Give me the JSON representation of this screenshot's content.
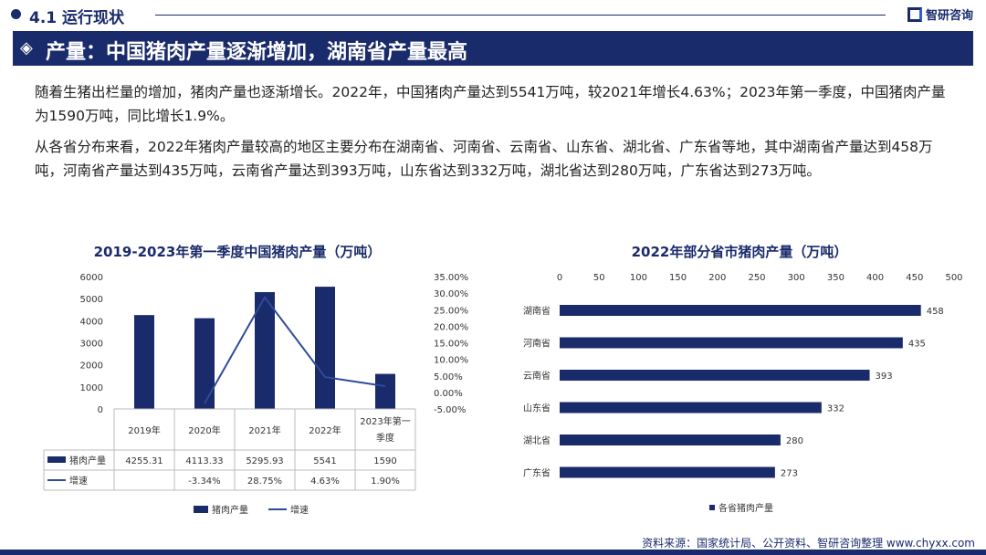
{
  "header": {
    "section": "4.1 运行现状",
    "brand": "智研咨询"
  },
  "banner": {
    "icon": "diamond-arrow-icon",
    "title": "产量：中国猪肉产量逐渐增加，湖南省产量最高"
  },
  "paragraphs": [
    "随着生猪出栏量的增加，猪肉产量也逐渐增长。2022年，中国猪肉产量达到5541万吨，较2021年增长4.63%；2023年第一季度，中国猪肉产量为1590万吨，同比增长1.9%。",
    "从各省分布来看，2022年猪肉产量较高的地区主要分布在湖南省、河南省、云南省、山东省、湖北省、广东省等地，其中湖南省产量达到458万吨，河南省产量达到435万吨，云南省产量达到393万吨，山东省达到332万吨，湖北省达到280万吨，广东省达到273万吨。"
  ],
  "source": "资料来源：国家统计局、公开资料、智研咨询整理 www.chyxx.com",
  "colors": {
    "navy": "#1a2b6b",
    "line": "#2e4a9a"
  },
  "chart_data": [
    {
      "type": "bar",
      "title": "2019-2023年第一季度中国猪肉产量（万吨）",
      "categories": [
        "2019年",
        "2020年",
        "2021年",
        "2022年",
        "2023年第一季度"
      ],
      "category_lines": [
        [
          "2019年"
        ],
        [
          "2020年"
        ],
        [
          "2021年"
        ],
        [
          "2022年"
        ],
        [
          "2023年第一",
          "季度"
        ]
      ],
      "series": [
        {
          "name": "猪肉产量",
          "type": "bar",
          "values": [
            4255.31,
            4113.33,
            5295.93,
            5541,
            1590
          ],
          "labels": [
            "4255.31",
            "4113.33",
            "5295.93",
            "5541",
            "1590"
          ]
        },
        {
          "name": "增速",
          "type": "line",
          "values": [
            null,
            -3.34,
            28.75,
            4.63,
            1.9
          ],
          "labels": [
            "",
            "-3.34%",
            "28.75%",
            "4.63%",
            "1.90%"
          ]
        }
      ],
      "ylim": [
        0,
        6000
      ],
      "yticks": [
        "0",
        "1000",
        "2000",
        "3000",
        "4000",
        "5000",
        "6000"
      ],
      "y2lim": [
        -5,
        35
      ],
      "y2ticks": [
        "-5.00%",
        "0.00%",
        "5.00%",
        "10.00%",
        "15.00%",
        "20.00%",
        "25.00%",
        "30.00%",
        "35.00%"
      ],
      "legend": [
        "猪肉产量",
        "增速"
      ]
    },
    {
      "type": "bar",
      "orientation": "horizontal",
      "title": "2022年部分省市猪肉产量（万吨）",
      "categories": [
        "湖南省",
        "河南省",
        "云南省",
        "山东省",
        "湖北省",
        "广东省"
      ],
      "values": [
        458,
        435,
        393,
        332,
        280,
        273
      ],
      "xlim": [
        0,
        500
      ],
      "xticks": [
        "0",
        "50",
        "100",
        "150",
        "200",
        "250",
        "300",
        "350",
        "400",
        "450",
        "500"
      ],
      "legend": [
        "各省猪肉产量"
      ]
    }
  ]
}
